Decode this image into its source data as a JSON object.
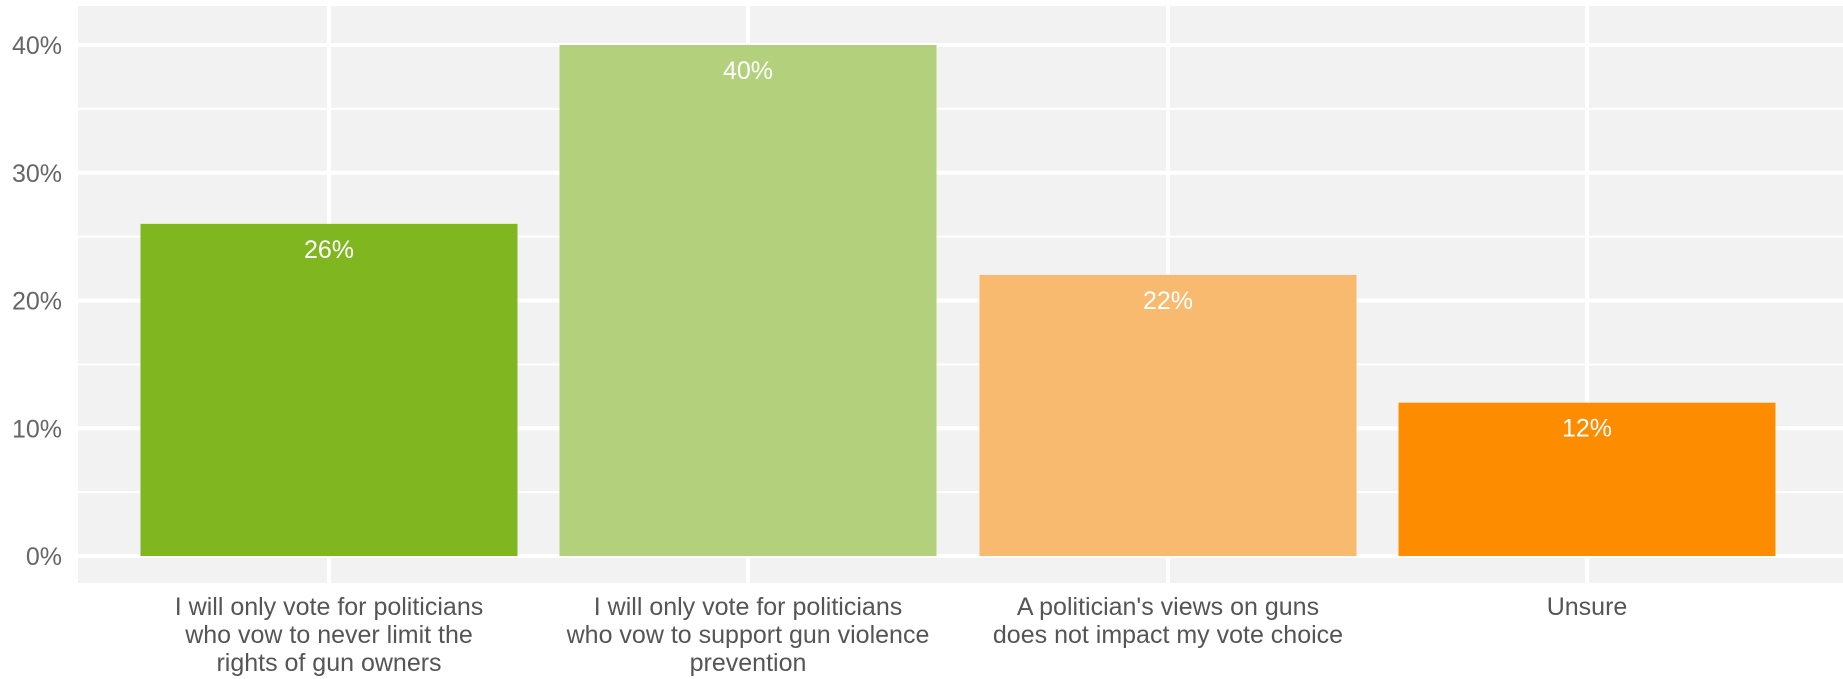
{
  "chart_data": {
    "type": "bar",
    "categories": [
      [
        "I will only vote for politicians",
        "who vow to never limit the",
        "rights of gun owners"
      ],
      [
        "I will only vote for politicians",
        "who vow to support gun violence",
        "prevention"
      ],
      [
        "A politician's views on guns",
        "does not impact my vote choice"
      ],
      [
        "Unsure"
      ]
    ],
    "values": [
      26,
      40,
      22,
      12
    ],
    "data_labels": [
      "26%",
      "40%",
      "22%",
      "12%"
    ],
    "colors": [
      "#80b721",
      "#b3d17d",
      "#f8ba6f",
      "#fd8c00"
    ],
    "title": "",
    "xlabel": "",
    "ylabel": "",
    "ylim": [
      0,
      43
    ],
    "yticks": [
      0,
      10,
      20,
      30,
      40
    ],
    "ytick_labels": [
      "0%",
      "10%",
      "20%",
      "30%",
      "40%"
    ],
    "grid": true,
    "legend": "none",
    "panel_color": "#f2f2f2",
    "grid_color": "#ffffff"
  }
}
